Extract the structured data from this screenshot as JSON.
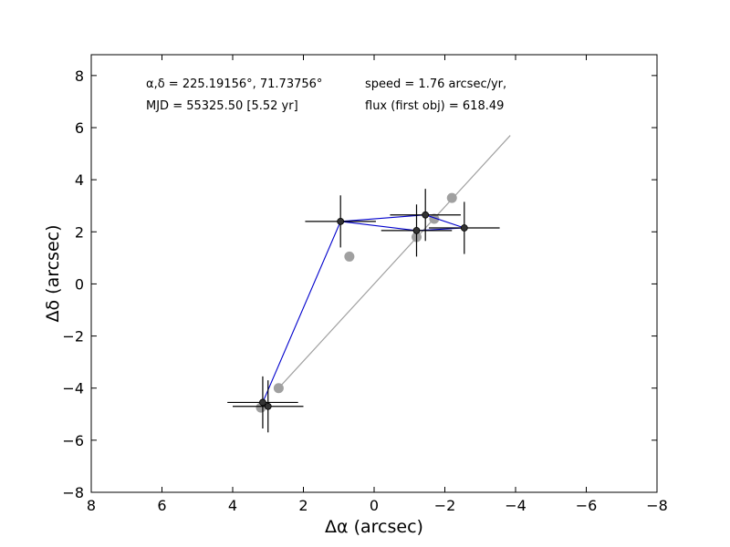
{
  "chart_data": {
    "type": "scatter",
    "xlabel": "Δα (arcsec)",
    "ylabel": "Δδ (arcsec)",
    "xlim": [
      8,
      -8
    ],
    "ylim": [
      -8,
      8.8
    ],
    "x_ticks": [
      "8",
      "6",
      "4",
      "2",
      "0",
      "−2",
      "−4",
      "−6",
      "−8"
    ],
    "y_ticks": [
      "−8",
      "−6",
      "−4",
      "−2",
      "0",
      "2",
      "4",
      "6",
      "8"
    ],
    "annotations": {
      "coords": "α,δ = 225.19156°, 71.73756°",
      "mjd": "MJD = 55325.50 [5.52 yr]",
      "speed": "speed = 1.76 arcsec/yr,",
      "flux": "flux (first obj) = 618.49"
    },
    "model_line": {
      "from": [
        2.7,
        -4.0
      ],
      "to": [
        -3.85,
        5.7
      ]
    },
    "model_points": [
      {
        "x": 3.2,
        "y": -4.75
      },
      {
        "x": 2.7,
        "y": -4.0
      },
      {
        "x": 0.7,
        "y": 1.05
      },
      {
        "x": -1.2,
        "y": 1.8
      },
      {
        "x": -1.7,
        "y": 2.5
      },
      {
        "x": -2.2,
        "y": 3.3
      }
    ],
    "measurements": [
      {
        "x": 3.15,
        "y": -4.55,
        "xerr": 1.0,
        "yerr": 1.0
      },
      {
        "x": 3.0,
        "y": -4.7,
        "xerr": 1.0,
        "yerr": 1.0
      },
      {
        "x": 0.95,
        "y": 2.4,
        "xerr": 1.0,
        "yerr": 1.0
      },
      {
        "x": -1.2,
        "y": 2.05,
        "xerr": 1.0,
        "yerr": 1.0
      },
      {
        "x": -1.45,
        "y": 2.65,
        "xerr": 1.0,
        "yerr": 1.0
      },
      {
        "x": -2.55,
        "y": 2.15,
        "xerr": 1.0,
        "yerr": 1.0
      }
    ],
    "path_order": [
      1,
      0,
      2,
      4,
      5,
      3,
      2
    ],
    "colors": {
      "model": "#a0a0a0",
      "path": "#0000cc",
      "measurement": "#000000",
      "measurement_fill": "#333333"
    }
  }
}
